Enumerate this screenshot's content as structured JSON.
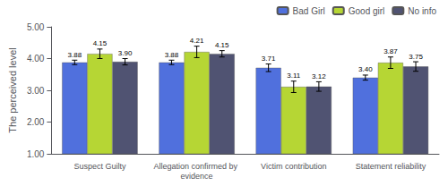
{
  "chart_data": {
    "type": "bar",
    "categories": [
      "Suspect Guilty",
      "Allegation confirmed by evidence",
      "Victim contribution",
      "Statement reliability"
    ],
    "ylabel": "The perceived level",
    "series": [
      {
        "name": "Bad Girl",
        "values": [
          3.88,
          3.88,
          3.71,
          3.4
        ],
        "value_labels": [
          "3.88",
          "3.88",
          "3.71",
          "3.40"
        ],
        "errors": [
          0.07,
          0.07,
          0.12,
          0.08
        ]
      },
      {
        "name": "Good girl",
        "values": [
          4.15,
          4.21,
          3.11,
          3.87
        ],
        "value_labels": [
          "4.15",
          "4.21",
          "3.11",
          "3.87"
        ],
        "errors": [
          0.15,
          0.18,
          0.18,
          0.18
        ]
      },
      {
        "name": "No info",
        "values": [
          3.9,
          4.15,
          3.12,
          3.75
        ],
        "value_labels": [
          "3.90",
          "4.15",
          "3.12",
          "3.75"
        ],
        "errors": [
          0.1,
          0.1,
          0.15,
          0.15
        ]
      }
    ],
    "ylim": [
      1.0,
      5.0
    ],
    "yticks": [
      {
        "value": 1,
        "label": "1.00"
      },
      {
        "value": 2,
        "label": "2.00"
      },
      {
        "value": 3,
        "label": "3.00"
      },
      {
        "value": 4,
        "label": "4.00"
      },
      {
        "value": 5,
        "label": "5.00"
      }
    ],
    "grid": false,
    "legend": "upper right",
    "data_labels": true
  }
}
